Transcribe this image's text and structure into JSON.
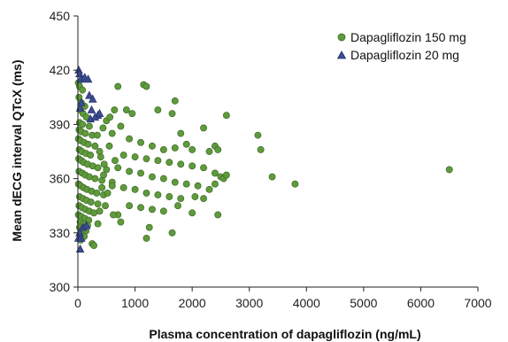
{
  "chart_data": {
    "type": "scatter",
    "title": "",
    "xlabel": "Plasma concentration of dapagliflozin (ng/mL)",
    "ylabel": "Mean dECG interval QTcX (ms)",
    "xlim": [
      0,
      7000
    ],
    "ylim": [
      300,
      450
    ],
    "xticks": [
      "0",
      "1000",
      "2000",
      "3000",
      "4000",
      "5000",
      "6000",
      "7000"
    ],
    "yticks": [
      "300",
      "330",
      "360",
      "390",
      "420",
      "450"
    ],
    "grid": false,
    "legend": "top-right",
    "series": [
      {
        "name": "Dapagliflozin 150 mg",
        "marker": "circle",
        "color": "#5f9a3c",
        "points": [
          [
            10,
            413
          ],
          [
            30,
            411
          ],
          [
            80,
            409
          ],
          [
            20,
            405
          ],
          [
            60,
            402
          ],
          [
            120,
            400
          ],
          [
            40,
            398
          ],
          [
            90,
            396
          ],
          [
            150,
            394
          ],
          [
            30,
            391
          ],
          [
            80,
            390
          ],
          [
            200,
            389
          ],
          [
            20,
            387
          ],
          [
            60,
            386
          ],
          [
            130,
            385
          ],
          [
            250,
            384
          ],
          [
            10,
            382
          ],
          [
            50,
            381
          ],
          [
            110,
            380
          ],
          [
            180,
            379
          ],
          [
            300,
            378
          ],
          [
            25,
            376
          ],
          [
            70,
            375
          ],
          [
            140,
            374
          ],
          [
            220,
            373
          ],
          [
            400,
            372
          ],
          [
            15,
            371
          ],
          [
            60,
            370
          ],
          [
            100,
            369
          ],
          [
            170,
            368
          ],
          [
            260,
            367
          ],
          [
            350,
            366
          ],
          [
            500,
            365
          ],
          [
            20,
            364
          ],
          [
            80,
            363
          ],
          [
            130,
            362
          ],
          [
            200,
            361
          ],
          [
            300,
            360
          ],
          [
            420,
            359
          ],
          [
            600,
            358
          ],
          [
            10,
            357
          ],
          [
            50,
            356
          ],
          [
            100,
            355
          ],
          [
            160,
            354
          ],
          [
            240,
            353
          ],
          [
            330,
            352
          ],
          [
            450,
            351
          ],
          [
            30,
            350
          ],
          [
            90,
            349
          ],
          [
            150,
            348
          ],
          [
            230,
            347
          ],
          [
            350,
            346
          ],
          [
            20,
            345
          ],
          [
            70,
            344
          ],
          [
            130,
            343
          ],
          [
            200,
            342
          ],
          [
            280,
            341
          ],
          [
            10,
            340
          ],
          [
            60,
            339
          ],
          [
            120,
            338
          ],
          [
            190,
            337
          ],
          [
            40,
            336
          ],
          [
            100,
            335
          ],
          [
            170,
            334
          ],
          [
            30,
            333
          ],
          [
            80,
            332
          ],
          [
            140,
            331
          ],
          [
            60,
            329
          ],
          [
            110,
            328
          ],
          [
            50,
            326
          ],
          [
            250,
            324
          ],
          [
            280,
            323
          ],
          [
            700,
            411
          ],
          [
            850,
            398
          ],
          [
            950,
            396
          ],
          [
            1150,
            412
          ],
          [
            1200,
            411
          ],
          [
            1400,
            398
          ],
          [
            1700,
            403
          ],
          [
            1650,
            396
          ],
          [
            2200,
            388
          ],
          [
            2600,
            395
          ],
          [
            1800,
            385
          ],
          [
            750,
            389
          ],
          [
            900,
            382
          ],
          [
            1100,
            380
          ],
          [
            1300,
            378
          ],
          [
            1500,
            376
          ],
          [
            1700,
            377
          ],
          [
            1900,
            379
          ],
          [
            2000,
            376
          ],
          [
            2300,
            375
          ],
          [
            2400,
            378
          ],
          [
            2450,
            376
          ],
          [
            800,
            373
          ],
          [
            1000,
            372
          ],
          [
            1200,
            371
          ],
          [
            1400,
            370
          ],
          [
            1600,
            369
          ],
          [
            1800,
            368
          ],
          [
            2000,
            367
          ],
          [
            2200,
            366
          ],
          [
            2400,
            363
          ],
          [
            2500,
            361
          ],
          [
            2550,
            360
          ],
          [
            2600,
            362
          ],
          [
            700,
            366
          ],
          [
            900,
            364
          ],
          [
            1100,
            363
          ],
          [
            1300,
            361
          ],
          [
            1500,
            360
          ],
          [
            1700,
            358
          ],
          [
            1900,
            357
          ],
          [
            2100,
            356
          ],
          [
            2300,
            354
          ],
          [
            2400,
            357
          ],
          [
            600,
            356
          ],
          [
            800,
            355
          ],
          [
            1000,
            354
          ],
          [
            1200,
            352
          ],
          [
            1400,
            351
          ],
          [
            1600,
            350
          ],
          [
            1800,
            349
          ],
          [
            2050,
            350
          ],
          [
            2200,
            349
          ],
          [
            900,
            345
          ],
          [
            1100,
            344
          ],
          [
            1300,
            343
          ],
          [
            1500,
            342
          ],
          [
            1750,
            345
          ],
          [
            2000,
            341
          ],
          [
            2450,
            340
          ],
          [
            700,
            340
          ],
          [
            750,
            336
          ],
          [
            1250,
            333
          ],
          [
            1200,
            327
          ],
          [
            1650,
            330
          ],
          [
            3150,
            384
          ],
          [
            3200,
            376
          ],
          [
            3400,
            361
          ],
          [
            3800,
            357
          ],
          [
            6500,
            365
          ],
          [
            500,
            392
          ],
          [
            600,
            385
          ],
          [
            550,
            378
          ],
          [
            650,
            370
          ],
          [
            450,
            362
          ],
          [
            520,
            352
          ],
          [
            480,
            345
          ],
          [
            620,
            340
          ],
          [
            350,
            335
          ],
          [
            380,
            342
          ],
          [
            420,
            355
          ],
          [
            460,
            368
          ],
          [
            380,
            375
          ],
          [
            340,
            384
          ],
          [
            440,
            388
          ],
          [
            560,
            394
          ],
          [
            640,
            398
          ]
        ]
      },
      {
        "name": "Dapagliflozin 20 mg",
        "marker": "triangle",
        "color": "#3c4c8f",
        "points": [
          [
            15,
            420
          ],
          [
            30,
            418
          ],
          [
            50,
            415
          ],
          [
            120,
            416
          ],
          [
            180,
            415
          ],
          [
            200,
            406
          ],
          [
            260,
            404
          ],
          [
            240,
            398
          ],
          [
            350,
            395
          ],
          [
            220,
            393
          ],
          [
            300,
            394
          ],
          [
            380,
            396
          ],
          [
            40,
            399
          ],
          [
            60,
            402
          ],
          [
            90,
            333
          ],
          [
            150,
            334
          ],
          [
            30,
            330
          ],
          [
            60,
            327
          ],
          [
            10,
            327
          ],
          [
            40,
            321
          ]
        ]
      }
    ]
  }
}
